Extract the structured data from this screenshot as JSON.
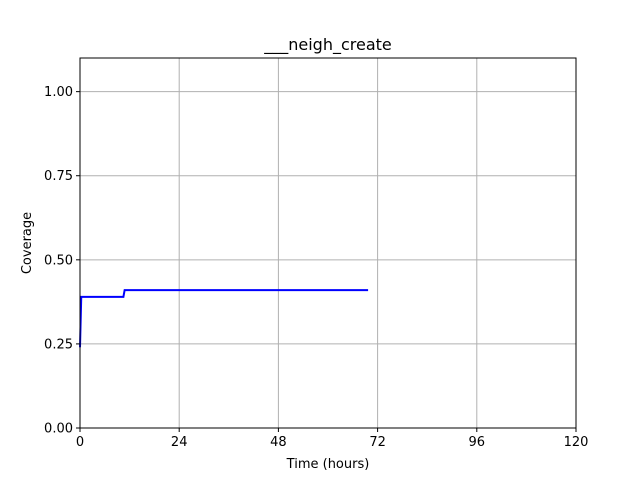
{
  "chart_data": {
    "type": "line",
    "title": "___neigh_create",
    "xlabel": "Time (hours)",
    "ylabel": "Coverage",
    "xlim": [
      0,
      120
    ],
    "ylim": [
      0.0,
      1.1
    ],
    "xticks": [
      0,
      24,
      48,
      72,
      96,
      120
    ],
    "xtick_labels": [
      "0",
      "24",
      "48",
      "72",
      "96",
      "120"
    ],
    "yticks": [
      0.0,
      0.25,
      0.5,
      0.75,
      1.0
    ],
    "ytick_labels": [
      "0.00",
      "0.25",
      "0.50",
      "0.75",
      "1.00"
    ],
    "grid": true,
    "series": [
      {
        "color": "#0000ff",
        "x": [
          0,
          0.3,
          10.5,
          10.8,
          69.7
        ],
        "y": [
          0.24,
          0.39,
          0.39,
          0.41,
          0.41
        ]
      }
    ]
  }
}
